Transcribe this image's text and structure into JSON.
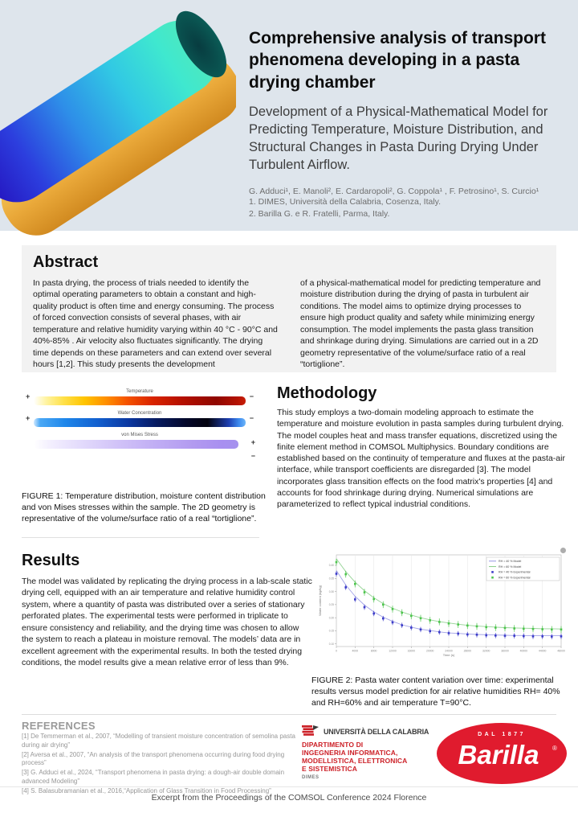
{
  "header": {
    "title": "Comprehensive analysis of transport\nphenomena developing in a pasta\ndrying chamber",
    "subtitle": "Development of a Physical-Mathematical Model for\nPredicting Temperature, Moisture Distribution, and\nStructural Changes in Pasta During Drying Under\nTurbulent Airflow.",
    "authors": "G. Adduci¹, E. Manoli², E. Cardaropoli², G. Coppola¹ , F. Petrosino¹, S. Curcio¹",
    "affiliation1": "1. DIMES, Università della Calabria, Cosenza, Italy.",
    "affiliation2": "2. Barilla G. e R. Fratelli, Parma, Italy."
  },
  "abstract": {
    "heading": "Abstract",
    "col1": "In pasta drying, the process of trials needed to identify the optimal operating parameters to obtain a constant and high-quality product is often time and energy consuming. The process of forced convection consists of several phases, with air temperature and relative humidity varying within 40 °C - 90°C and 40%-85% . Air velocity also fluctuates significantly. The drying time depends on these parameters and can extend over several hours [1,2]. This study presents the development",
    "col2": "of a physical-mathematical model for predicting temperature and moisture distribution during the drying of pasta in turbulent air conditions. The model aims to optimize drying processes to ensure high product quality and safety while minimizing energy consumption. The model implements the pasta glass transition and shrinkage during drying. Simulations are carried out in a 2D geometry representative of the volume/surface ratio of a real “tortiglione”."
  },
  "methodology": {
    "heading": "Methodology",
    "body": "This study employs a two-domain modeling approach to estimate the temperature and moisture evolution in pasta samples during turbulent drying. The model couples heat and mass transfer equations, discretized using the finite element method in COMSOL Multiphysics. Boundary conditions are established based on the continuity of temperature and fluxes at the pasta-air interface, while transport coefficients are disregarded [3]. The model incorporates glass transition effects on the food matrix's properties [4] and accounts for food shrinkage during drying. Numerical simulations are parameterized to reflect typical industrial conditions."
  },
  "figure1": {
    "bars": [
      {
        "label": "Temperature",
        "plus": "+",
        "minus": "−"
      },
      {
        "label": "Water Concentration",
        "plus": "+",
        "minus": "−"
      },
      {
        "label": "von Mises Stress",
        "plus": "+",
        "minus": "−"
      }
    ],
    "caption": "FIGURE 1: Temperature distribution, moisture content distribution and von Mises stresses within the sample. The 2D geometry is representative of the volume/surface ratio of a real “tortiglione”."
  },
  "results": {
    "heading": "Results",
    "body": "The model was validated by replicating the drying process in a lab-scale static drying cell, equipped with an air temperature and relative humidity control system, where a quantity of pasta was distributed over a series of stationary perforated plates. The experimental tests were performed in triplicate to ensure consistency and reliability, and the drying time was chosen to allow the system to reach a plateau in moisture removal. The models’ data are in excellent agreement with the experimental results. In both the tested drying conditions, the model results give a mean relative error of less than 9%."
  },
  "figure2": {
    "caption": "FIGURE 2:  Pasta water content variation over time: experimental results versus model prediction for air relative humidities RH= 40% and RH=60% and air temperature T=90°C."
  },
  "chart_data": {
    "type": "line",
    "title": "",
    "xlabel": "Time (s)",
    "ylabel": "Water content (kg/kg)",
    "xlim": [
      0,
      48000
    ],
    "ylim": [
      0.09,
      0.44
    ],
    "x_ticks": [
      0,
      4000,
      8000,
      12000,
      16000,
      20000,
      24000,
      28000,
      32000,
      36000,
      40000,
      44000,
      48000
    ],
    "y_ticks": [
      0.1,
      0.15,
      0.2,
      0.25,
      0.3,
      0.35,
      0.4
    ],
    "grid": "vertical",
    "legend_position": "top-right",
    "x": [
      0,
      2000,
      4000,
      6000,
      8000,
      10000,
      12000,
      14000,
      16000,
      18000,
      20000,
      22000,
      24000,
      26000,
      28000,
      30000,
      32000,
      34000,
      36000,
      38000,
      40000,
      42000,
      44000,
      46000,
      48000
    ],
    "series": [
      {
        "name": "RH = 40 % Model",
        "type": "line",
        "color": "#8a8ae0",
        "values": [
          0.38,
          0.325,
          0.282,
          0.248,
          0.222,
          0.202,
          0.186,
          0.173,
          0.164,
          0.156,
          0.151,
          0.146,
          0.142,
          0.14,
          0.138,
          0.136,
          0.135,
          0.134,
          0.133,
          0.132,
          0.132,
          0.131,
          0.131,
          0.131,
          0.131
        ]
      },
      {
        "name": "RH = 60 % Model",
        "type": "line",
        "color": "#7bc87b",
        "values": [
          0.425,
          0.376,
          0.336,
          0.303,
          0.276,
          0.254,
          0.236,
          0.222,
          0.21,
          0.2,
          0.192,
          0.185,
          0.18,
          0.175,
          0.171,
          0.168,
          0.166,
          0.164,
          0.162,
          0.161,
          0.16,
          0.159,
          0.158,
          0.158,
          0.157
        ]
      },
      {
        "name": "RH = 40 % Experimental",
        "type": "scatter",
        "color": "#3b3bc8",
        "err": 0.01,
        "values": [
          0.368,
          0.316,
          0.27,
          0.24,
          0.216,
          0.197,
          0.182,
          0.171,
          0.162,
          0.155,
          0.149,
          0.145,
          0.141,
          0.139,
          0.136,
          0.135,
          0.133,
          0.132,
          0.131,
          0.131,
          0.13,
          0.129,
          0.129,
          0.128,
          0.129
        ]
      },
      {
        "name": "RH = 60 % Experimental",
        "type": "scatter",
        "color": "#4dc44d",
        "err": 0.013,
        "values": [
          0.412,
          0.366,
          0.329,
          0.297,
          0.271,
          0.25,
          0.233,
          0.219,
          0.207,
          0.198,
          0.19,
          0.184,
          0.178,
          0.174,
          0.17,
          0.167,
          0.164,
          0.162,
          0.161,
          0.159,
          0.158,
          0.157,
          0.156,
          0.155,
          0.155
        ]
      }
    ]
  },
  "references": {
    "heading": "REFERENCES",
    "items": [
      "[1] De Temmerman et al., 2007,  “Modelling of transient moisture concentration of semolina pasta during air drying”",
      "[2] Aversa et al., 2007, “An analysis of the transport phenomena occurring during food drying process”",
      "[3] G. Adduci et al., 2024, “Transport phenomena in pasta drying: a dough-air double domain advanced Modeling”",
      "[4] S. Balasubramanian et al., 2016,“Application of Glass Transition in Food Processing”"
    ]
  },
  "logos": {
    "unical": {
      "name": "UNIVERSITÀ DELLA CALABRIA",
      "dept_lines": [
        "DIPARTIMENTO DI",
        "INGEGNERIA INFORMATICA,",
        "MODELLISTICA, ELETTRONICA",
        "E SISTEMISTICA"
      ],
      "dimes": "DIMES"
    },
    "barilla": {
      "top": "DAL 1877",
      "wordmark": "Barilla",
      "registered": "®"
    }
  },
  "footer": "Excerpt from the Proceedings of the COMSOL Conference 2024 Florence",
  "colors": {
    "header_bg": "#dee5ec",
    "abstract_bg": "#f2f2f2",
    "unical_red": "#cc2027",
    "barilla_red": "#e01b2e",
    "model_rh40": "#8a8ae0",
    "model_rh60": "#7bc87b",
    "exp_rh40": "#3b3bc8",
    "exp_rh60": "#4dc44d"
  }
}
